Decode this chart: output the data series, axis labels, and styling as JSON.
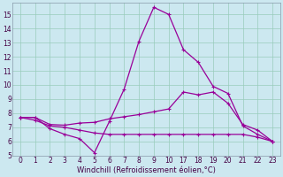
{
  "bg_color": "#cce8f0",
  "line_color": "#990099",
  "grid_color": "#99ccbb",
  "ylim": [
    5,
    15.8
  ],
  "yticks": [
    5,
    6,
    7,
    8,
    9,
    10,
    11,
    12,
    13,
    14,
    15
  ],
  "xlabel": "Windchill (Refroidissement éolien,°C)",
  "xtick_labels": [
    "0",
    "1",
    "2",
    "3",
    "4",
    "5",
    "6",
    "7",
    "8",
    "9",
    "10",
    "17",
    "18",
    "19",
    "20",
    "21",
    "22",
    "23"
  ],
  "line1_y": [
    7.7,
    7.7,
    6.9,
    6.5,
    6.2,
    5.2,
    7.4,
    9.7,
    13.1,
    15.5,
    15.0,
    12.5,
    11.6,
    9.9,
    9.4,
    7.1,
    6.5,
    6.0
  ],
  "line2_y": [
    7.7,
    7.7,
    7.2,
    7.15,
    7.3,
    7.35,
    7.6,
    7.75,
    7.9,
    8.1,
    8.3,
    9.5,
    9.3,
    9.5,
    8.7,
    7.2,
    6.8,
    6.0
  ],
  "line3_y": [
    7.7,
    7.5,
    7.1,
    7.0,
    6.8,
    6.6,
    6.5,
    6.5,
    6.5,
    6.5,
    6.5,
    6.5,
    6.5,
    6.5,
    6.5,
    6.5,
    6.3,
    6.0
  ],
  "tick_fontsize": 5.5,
  "label_fontsize": 6.0,
  "tick_color": "#440044",
  "lw": 0.9,
  "ms": 3.5
}
